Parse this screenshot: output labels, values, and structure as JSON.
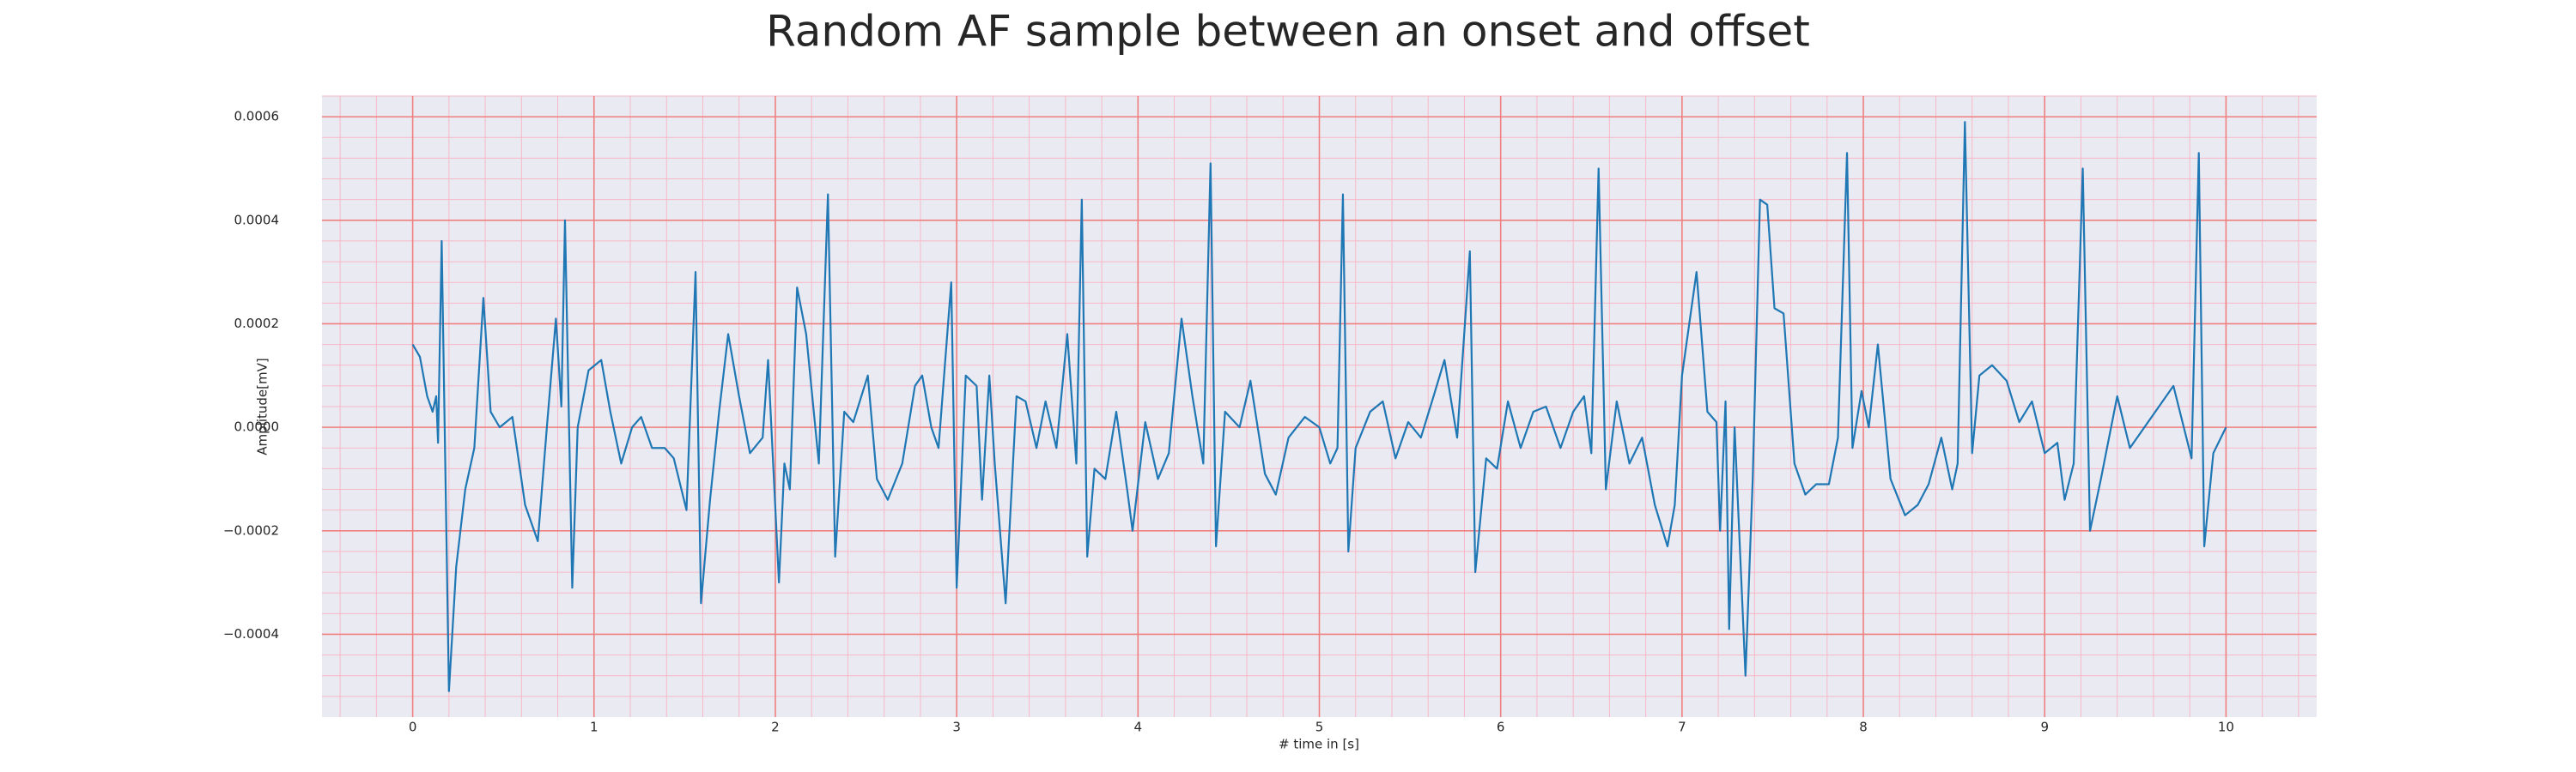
{
  "chart_data": {
    "type": "line",
    "title": "Random AF sample between an onset and offset",
    "x_label": "# time in [s]",
    "y_label": "Amplitude[mV]",
    "color": "#1f77b4",
    "grid": true,
    "minor_grid": true,
    "xlim": [
      -0.5,
      10.5
    ],
    "ylim": [
      -0.00056,
      0.00064
    ],
    "xticks": [
      0,
      1,
      2,
      3,
      4,
      5,
      6,
      7,
      8,
      9,
      10
    ],
    "yticks": [
      {
        "value": -0.0004,
        "label": "−0.0004"
      },
      {
        "value": -0.0002,
        "label": "−0.0002"
      },
      {
        "value": 0,
        "label": "0.0000"
      },
      {
        "value": 0.0002,
        "label": "0.0002"
      },
      {
        "value": 0.0004,
        "label": "0.0004"
      },
      {
        "value": 0.0006,
        "label": "0.0006"
      }
    ],
    "x": [
      0,
      0.04,
      0.08,
      0.11,
      0.13,
      0.14,
      0.16,
      0.2,
      0.24,
      0.29,
      0.34,
      0.39,
      0.43,
      0.48,
      0.55,
      0.62,
      0.69,
      0.74,
      0.79,
      0.82,
      0.84,
      0.88,
      0.91,
      0.97,
      1.04,
      1.09,
      1.15,
      1.21,
      1.26,
      1.32,
      1.39,
      1.44,
      1.51,
      1.56,
      1.59,
      1.64,
      1.69,
      1.74,
      1.8,
      1.86,
      1.93,
      1.96,
      2.02,
      2.05,
      2.08,
      2.12,
      2.17,
      2.24,
      2.29,
      2.33,
      2.38,
      2.43,
      2.51,
      2.56,
      2.62,
      2.7,
      2.77,
      2.81,
      2.86,
      2.9,
      2.97,
      3.0,
      3.05,
      3.11,
      3.14,
      3.18,
      3.21,
      3.27,
      3.33,
      3.38,
      3.44,
      3.49,
      3.55,
      3.61,
      3.66,
      3.69,
      3.72,
      3.76,
      3.82,
      3.88,
      3.94,
      3.97,
      4.04,
      4.11,
      4.17,
      4.24,
      4.3,
      4.36,
      4.4,
      4.43,
      4.48,
      4.56,
      4.62,
      4.7,
      4.76,
      4.83,
      4.92,
      5.0,
      5.06,
      5.1,
      5.13,
      5.16,
      5.2,
      5.28,
      5.35,
      5.42,
      5.49,
      5.56,
      5.63,
      5.69,
      5.76,
      5.83,
      5.86,
      5.92,
      5.98,
      6.04,
      6.11,
      6.18,
      6.25,
      6.33,
      6.4,
      6.46,
      6.5,
      6.54,
      6.58,
      6.64,
      6.71,
      6.78,
      6.85,
      6.92,
      6.96,
      7.0,
      7.08,
      7.14,
      7.19,
      7.21,
      7.24,
      7.26,
      7.29,
      7.35,
      7.39,
      7.43,
      7.47,
      7.51,
      7.56,
      7.62,
      7.68,
      7.74,
      7.81,
      7.86,
      7.91,
      7.94,
      7.99,
      8.03,
      8.08,
      8.15,
      8.23,
      8.3,
      8.36,
      8.43,
      8.49,
      8.52,
      8.56,
      8.6,
      8.64,
      8.71,
      8.79,
      8.86,
      8.93,
      9.0,
      9.07,
      9.11,
      9.16,
      9.21,
      9.25,
      9.31,
      9.4,
      9.47,
      9.55,
      9.63,
      9.71,
      9.76,
      9.81,
      9.85,
      9.88,
      9.93,
      10.0
    ],
    "values": [
      0.00016,
      0.000136,
      6e-05,
      3e-05,
      6e-05,
      -3e-05,
      0.00036,
      -0.00051,
      -0.00027,
      -0.00012,
      -4e-05,
      0.00025,
      3e-05,
      0,
      2e-05,
      -0.00015,
      -0.00022,
      0,
      0.00021,
      4e-05,
      0.0004,
      -0.00031,
      0,
      0.00011,
      0.00013,
      3e-05,
      -7e-05,
      0,
      2e-05,
      -4e-05,
      -4e-05,
      -6e-05,
      -0.00016,
      0.0003,
      -0.00034,
      -0.00014,
      3e-05,
      0.00018,
      6e-05,
      -5e-05,
      -2e-05,
      0.00013,
      -0.0003,
      -7e-05,
      -0.00012,
      0.00027,
      0.00018,
      -7e-05,
      0.00045,
      -0.00025,
      3e-05,
      1e-05,
      0.0001,
      -0.0001,
      -0.00014,
      -7e-05,
      8e-05,
      0.0001,
      0,
      -4e-05,
      0.00028,
      -0.00031,
      0.0001,
      8e-05,
      -0.00014,
      0.0001,
      -7e-05,
      -0.00034,
      6e-05,
      5e-05,
      -4e-05,
      5e-05,
      -4e-05,
      0.00018,
      -7e-05,
      0.00044,
      -0.00025,
      -8e-05,
      -0.0001,
      3e-05,
      -0.00012,
      -0.0002,
      1e-05,
      -0.0001,
      -5e-05,
      0.00021,
      6e-05,
      -7e-05,
      0.00051,
      -0.00023,
      3e-05,
      0,
      9e-05,
      -9e-05,
      -0.00013,
      -2e-05,
      2e-05,
      0,
      -7e-05,
      -4e-05,
      0.00045,
      -0.00024,
      -4e-05,
      3e-05,
      5e-05,
      -6e-05,
      1e-05,
      -2e-05,
      6e-05,
      0.00013,
      -2e-05,
      0.00034,
      -0.00028,
      -6e-05,
      -8e-05,
      5e-05,
      -4e-05,
      3e-05,
      4e-05,
      -4e-05,
      3e-05,
      6e-05,
      -5e-05,
      0.0005,
      -0.00012,
      5e-05,
      -7e-05,
      -2e-05,
      -0.00015,
      -0.00023,
      -0.00015,
      0.0001,
      0.0003,
      3e-05,
      1e-05,
      -0.0002,
      5e-05,
      -0.00039,
      0,
      -0.00048,
      -0.0001,
      0.00044,
      0.00043,
      0.00023,
      0.00022,
      -7e-05,
      -0.00013,
      -0.00011,
      -0.00011,
      -2e-05,
      0.00053,
      -4e-05,
      7e-05,
      0,
      0.00016,
      -0.0001,
      -0.00017,
      -0.00015,
      -0.00011,
      -2e-05,
      -0.00012,
      -7e-05,
      0.00059,
      -5e-05,
      0.0001,
      0.00012,
      9e-05,
      1e-05,
      5e-05,
      -5e-05,
      -3e-05,
      -0.00014,
      -7e-05,
      0.0005,
      -0.0002,
      -0.0001,
      6e-05,
      -4e-05,
      0,
      4e-05,
      8e-05,
      1e-05,
      -6e-05,
      0.00053,
      -0.00023,
      -5e-05,
      0
    ]
  }
}
